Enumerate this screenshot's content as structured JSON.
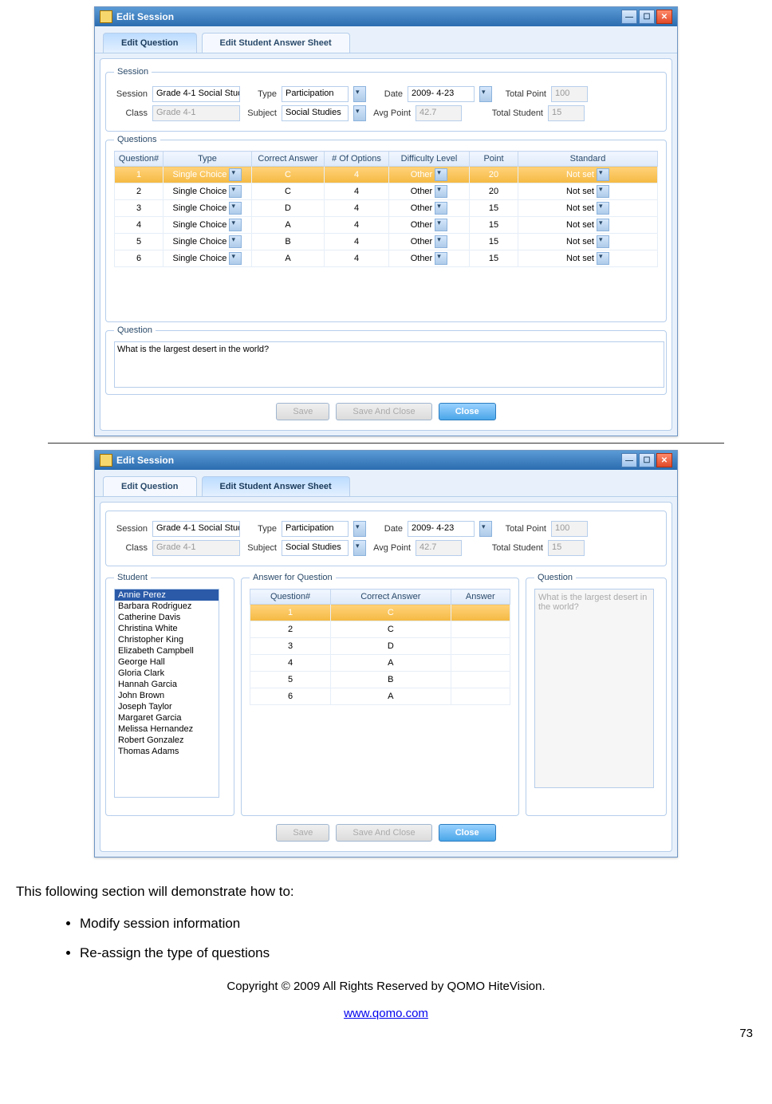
{
  "win": {
    "title": "Edit Session",
    "tabs": {
      "q": "Edit Question",
      "s": "Edit Student Answer Sheet"
    },
    "btns": {
      "save": "Save",
      "saveclose": "Save And Close",
      "close": "Close"
    }
  },
  "session": {
    "labels": {
      "session": "Session",
      "class": "Class",
      "type": "Type",
      "subject": "Subject",
      "date": "Date",
      "avg": "Avg Point",
      "tp": "Total Point",
      "ts": "Total Student"
    },
    "session": "Grade 4-1 Social Stud",
    "class": "Grade 4-1",
    "type": "Participation",
    "subject": "Social Studies",
    "date": "2009- 4-23",
    "avg": "42.7",
    "total_point": "100",
    "total_student": "15",
    "fs_session": "Session",
    "fs_questions": "Questions",
    "fs_question": "Question",
    "fs_student": "Student",
    "fs_answer": "Answer for Question"
  },
  "cols": {
    "n": "Question#",
    "t": "Type",
    "ca": "Correct Answer",
    "no": "# Of Options",
    "dl": "Difficulty Level",
    "pt": "Point",
    "st": "Standard",
    "ans": "Answer"
  },
  "questions": [
    {
      "n": "1",
      "t": "Single Choice",
      "ca": "C",
      "no": "4",
      "dl": "Other",
      "pt": "20",
      "st": "Not set"
    },
    {
      "n": "2",
      "t": "Single Choice",
      "ca": "C",
      "no": "4",
      "dl": "Other",
      "pt": "20",
      "st": "Not set"
    },
    {
      "n": "3",
      "t": "Single Choice",
      "ca": "D",
      "no": "4",
      "dl": "Other",
      "pt": "15",
      "st": "Not set"
    },
    {
      "n": "4",
      "t": "Single Choice",
      "ca": "A",
      "no": "4",
      "dl": "Other",
      "pt": "15",
      "st": "Not set"
    },
    {
      "n": "5",
      "t": "Single Choice",
      "ca": "B",
      "no": "4",
      "dl": "Other",
      "pt": "15",
      "st": "Not set"
    },
    {
      "n": "6",
      "t": "Single Choice",
      "ca": "A",
      "no": "4",
      "dl": "Other",
      "pt": "15",
      "st": "Not set"
    }
  ],
  "qtext": "What is the largest desert in the world?",
  "students": [
    "Annie Perez",
    "Barbara Rodriguez",
    "Catherine Davis",
    "Christina White",
    "Christopher  King",
    "Elizabeth Campbell",
    "George Hall",
    "Gloria Clark",
    "Hannah Garcia",
    "John Brown",
    "Joseph Taylor",
    "Margaret Garcia",
    "Melissa Hernandez",
    "Robert Gonzalez",
    "Thomas Adams"
  ],
  "answers": [
    {
      "n": "1",
      "ca": "C",
      "ans": ""
    },
    {
      "n": "2",
      "ca": "C",
      "ans": ""
    },
    {
      "n": "3",
      "ca": "D",
      "ans": ""
    },
    {
      "n": "4",
      "ca": "A",
      "ans": ""
    },
    {
      "n": "5",
      "ca": "B",
      "ans": ""
    },
    {
      "n": "6",
      "ca": "A",
      "ans": ""
    }
  ],
  "qprev": "What is the largest desert in the world?",
  "doc": {
    "intro": "This following section will demonstrate how to:",
    "b1": "Modify session information",
    "b2": "Re-assign the type of questions",
    "copy": "Copyright © 2009 All Rights Reserved by QOMO HiteVision.",
    "url": "www.qomo.com",
    "pg": "73"
  },
  "colors": {
    "titlebar": "#2b6cb0",
    "tab_active": "#bcdcff",
    "sel_row": "#f4b942",
    "sel_student": "#2a5aa8"
  }
}
